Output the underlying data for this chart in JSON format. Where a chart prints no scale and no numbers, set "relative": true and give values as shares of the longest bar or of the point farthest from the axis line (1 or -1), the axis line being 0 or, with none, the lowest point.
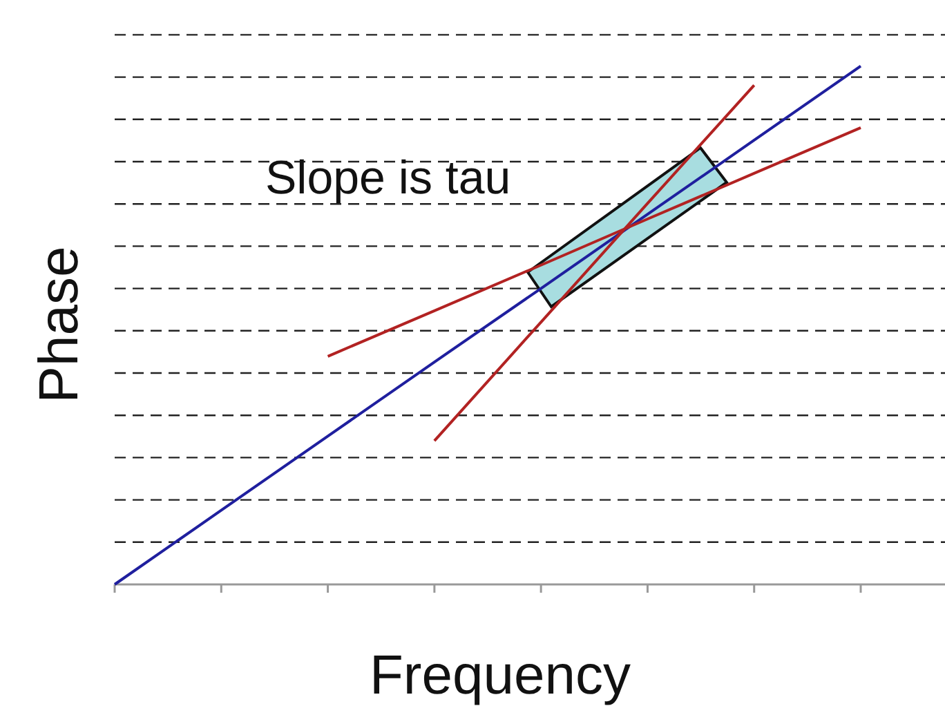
{
  "chart_data": {
    "type": "line",
    "xlabel": "Frequency",
    "ylabel": "Phase",
    "relative": true,
    "grid": "y",
    "line_style": "solid",
    "marker": "none",
    "categories": [
      null,
      null,
      null,
      null,
      null,
      null,
      null,
      null
    ],
    "series": [
      {
        "color": "#1f1f9e",
        "values": [
          0,
          0.143,
          0.286,
          0.429,
          0.571,
          0.714,
          0.857,
          1
        ]
      },
      {
        "color": "#b22222",
        "values": [
          null,
          null,
          null,
          0.277,
          0.506,
          0.735,
          0.963,
          null
        ]
      },
      {
        "color": "#b22222",
        "values": [
          null,
          null,
          0.44,
          0.528,
          0.616,
          0.705,
          0.793,
          0.881
        ]
      }
    ],
    "annotations": [
      "Slope is tau"
    ]
  }
}
